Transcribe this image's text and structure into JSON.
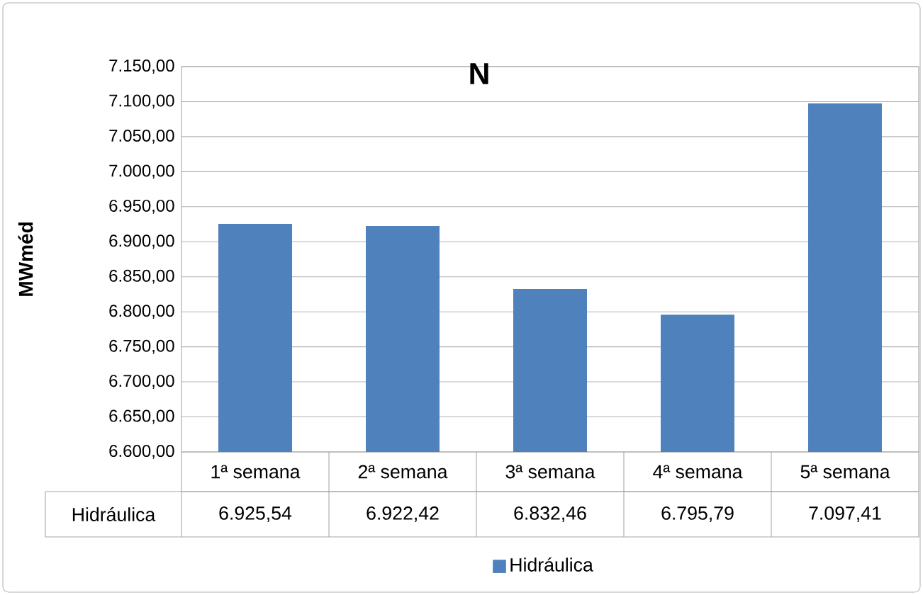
{
  "chart_data": {
    "type": "bar",
    "title": "N",
    "ylabel": "MWméd",
    "categories": [
      "1ª semana",
      "2ª semana",
      "3ª semana",
      "4ª semana",
      "5ª semana"
    ],
    "series": [
      {
        "name": "Hidráulica",
        "color": "#4f81bd",
        "values": [
          6925.54,
          6922.42,
          6832.46,
          6795.79,
          7097.41
        ],
        "value_labels": [
          "6.925,54",
          "6.922,42",
          "6.832,46",
          "6.795,79",
          "7.097,41"
        ]
      }
    ],
    "ylim": [
      6600,
      7150
    ],
    "yticks": [
      {
        "value": 6600,
        "label": "6.600,00"
      },
      {
        "value": 6650,
        "label": "6.650,00"
      },
      {
        "value": 6700,
        "label": "6.700,00"
      },
      {
        "value": 6750,
        "label": "6.750,00"
      },
      {
        "value": 6800,
        "label": "6.800,00"
      },
      {
        "value": 6850,
        "label": "6.850,00"
      },
      {
        "value": 6900,
        "label": "6.900,00"
      },
      {
        "value": 6950,
        "label": "6.950,00"
      },
      {
        "value": 7000,
        "label": "7.000,00"
      },
      {
        "value": 7050,
        "label": "7.050,00"
      },
      {
        "value": 7100,
        "label": "7.100,00"
      },
      {
        "value": 7150,
        "label": "7.150,00"
      }
    ],
    "grid": "y",
    "legend": "bottom"
  }
}
